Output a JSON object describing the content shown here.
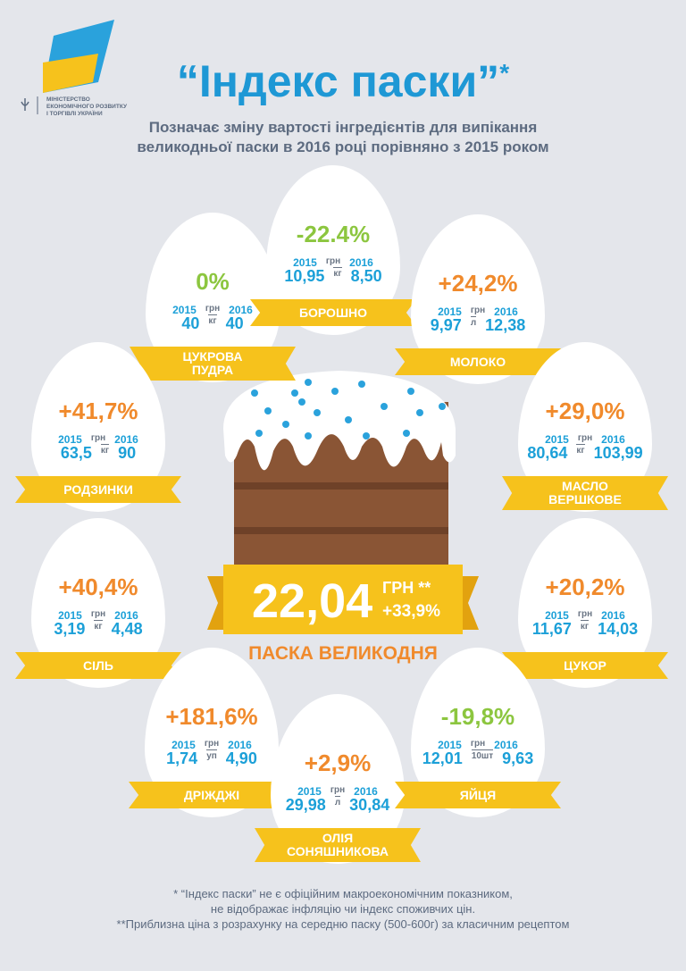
{
  "header": {
    "ministry": [
      "МІНІСТЕРСТВО",
      "ЕКОНОМІЧНОГО РОЗВИТКУ",
      "І ТОРГІВЛІ УКРАЇНИ"
    ],
    "title": "“Індекс паски”",
    "title_mark": "*",
    "subtitle": [
      "Позначає зміну вартості інгредієнтів для випікання",
      "великодньої паски в 2016 році порівняно з 2015 роком"
    ]
  },
  "items": [
    {
      "name": [
        "ЦУКРОВА",
        "ПУДРА"
      ],
      "change": "0%",
      "color": "#8cc63f",
      "year1": "2015",
      "unit": [
        "грн",
        "кг"
      ],
      "year2": "2016",
      "price1": "40",
      "price2": "40"
    },
    {
      "name": [
        "БОРОШНО"
      ],
      "change": "-22.4%",
      "color": "#8cc63f",
      "year1": "2015",
      "unit": [
        "грн",
        "кг"
      ],
      "year2": "2016",
      "price1": "10,95",
      "price2": "8,50"
    },
    {
      "name": [
        "МОЛОКО"
      ],
      "change": "+24,2%",
      "color": "#f08a2c",
      "year1": "2015",
      "unit": [
        "грн",
        "л"
      ],
      "year2": "2016",
      "price1": "9,97",
      "price2": "12,38"
    },
    {
      "name": [
        "РОДЗИНКИ"
      ],
      "change": "+41,7%",
      "color": "#f08a2c",
      "year1": "2015",
      "unit": [
        "грн",
        "кг"
      ],
      "year2": "2016",
      "price1": "63,5",
      "price2": "90"
    },
    {
      "name": [
        "МАСЛО",
        "ВЕРШКОВЕ"
      ],
      "change": "+29,0%",
      "color": "#f08a2c",
      "year1": "2015",
      "unit": [
        "грн",
        "кг"
      ],
      "year2": "2016",
      "price1": "80,64",
      "price2": "103,99"
    },
    {
      "name": [
        "СІЛЬ"
      ],
      "change": "+40,4%",
      "color": "#f08a2c",
      "year1": "2015",
      "unit": [
        "грн",
        "кг"
      ],
      "year2": "2016",
      "price1": "3,19",
      "price2": "4,48"
    },
    {
      "name": [
        "ЦУКОР"
      ],
      "change": "+20,2%",
      "color": "#f08a2c",
      "year1": "2015",
      "unit": [
        "грн",
        "кг"
      ],
      "year2": "2016",
      "price1": "11,67",
      "price2": "14,03"
    },
    {
      "name": [
        "ДРІЖДЖІ"
      ],
      "change": "+181,6%",
      "color": "#f08a2c",
      "year1": "2015",
      "unit": [
        "грн",
        "уп"
      ],
      "year2": "2016",
      "price1": "1,74",
      "price2": "4,90"
    },
    {
      "name": [
        "ОЛІЯ",
        "СОНЯШНИКОВА"
      ],
      "change": "+2,9%",
      "color": "#f08a2c",
      "year1": "2015",
      "unit": [
        "грн",
        "л"
      ],
      "year2": "2016",
      "price1": "29,98",
      "price2": "30,84"
    },
    {
      "name": [
        "ЯЙЦЯ"
      ],
      "change": "-19,8%",
      "color": "#8cc63f",
      "year1": "2015",
      "unit": [
        "грн",
        "10шт"
      ],
      "year2": "2016",
      "price1": "12,01",
      "price2": "9,63"
    }
  ],
  "center": {
    "price": "22,04",
    "currency": "ГРН **",
    "change": "+33,9%",
    "label": "ПАСКА ВЕЛИКОДНЯ"
  },
  "footnotes": [
    "* “Індекс паски” не є офіційним макроекономічним показником,",
    "не відображає інфляцію чи індекс споживчих цін.",
    "**Приблизна ціна з розрахунку на середню паску (500-600г) за класичним рецептом"
  ]
}
